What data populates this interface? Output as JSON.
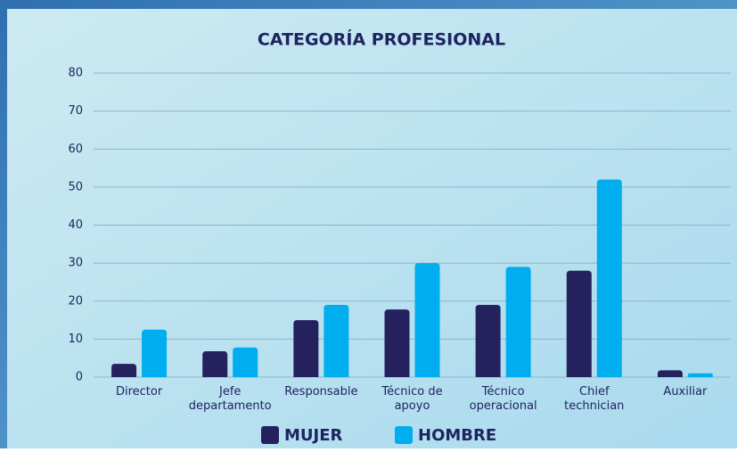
{
  "chart_data": {
    "type": "bar",
    "title": "CATEGORÍA PROFESIONAL",
    "categories": [
      "Director",
      "Jefe\ndepartamento",
      "Responsable",
      "Técnico de\napoyo",
      "Técnico\noperacional",
      "Chief\ntechnician",
      "Auxiliar"
    ],
    "series": [
      {
        "name": "MUJER",
        "color": "#25215e",
        "values": [
          3.5,
          6.8,
          15,
          17.8,
          19,
          28,
          1.8
        ]
      },
      {
        "name": "HOMBRE",
        "color": "#00aeef",
        "values": [
          12.5,
          7.8,
          19,
          30,
          29,
          52,
          1
        ]
      }
    ],
    "ylim": [
      0,
      80
    ],
    "yticks": [
      0,
      10,
      20,
      30,
      40,
      50,
      60,
      70,
      80
    ],
    "grid": true,
    "legend": "bottom"
  }
}
